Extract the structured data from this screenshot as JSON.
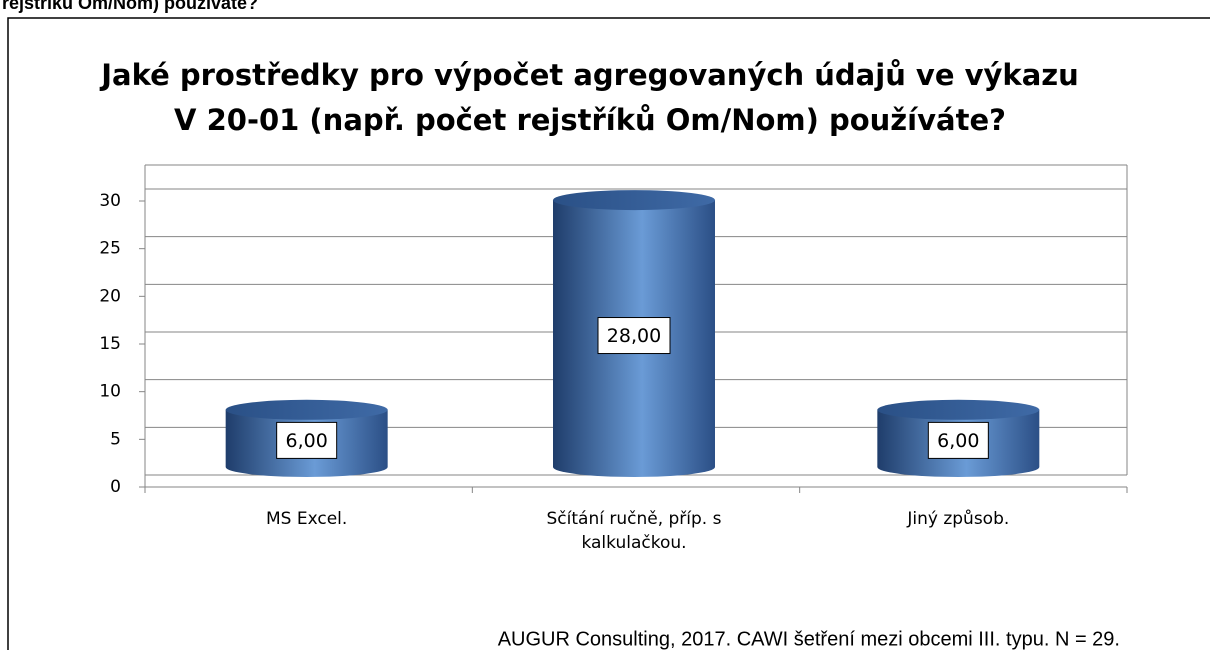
{
  "page_header": "rejstříků Om/Nom) používáte?",
  "chart_data": {
    "type": "bar",
    "title": [
      "Jaké prostředky pro výpočet agregovaných údajů ve výkazu",
      "V 20-01 (např. počet rejstříků Om/Nom) používáte?"
    ],
    "categories": [
      "MS Excel.",
      "Sčítání ručně, příp. s kalkulačkou.",
      "Jiný způsob."
    ],
    "values": [
      6,
      28,
      6
    ],
    "value_labels": [
      "6,00",
      "28,00",
      "6,00"
    ],
    "color": "#4f81bd",
    "ylim": [
      0,
      30
    ],
    "yticks": [
      0,
      5,
      10,
      15,
      20,
      25,
      30
    ],
    "grid": true,
    "source": "AUGUR Consulting, 2017. CAWI šetření mezi obcemi III. typu. N = 29."
  }
}
